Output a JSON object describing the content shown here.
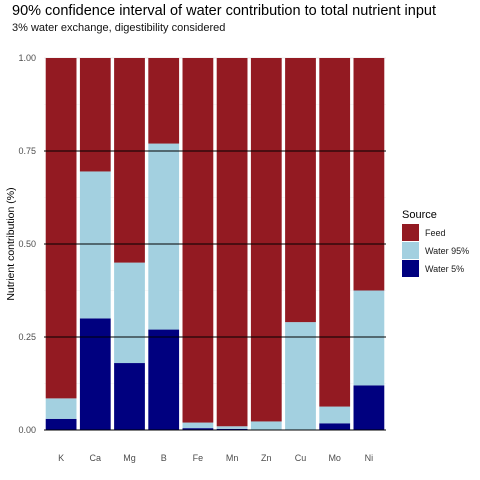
{
  "title": "90% confidence interval of water contribution to total nutrient input",
  "subtitle": "3% water exchange, digestibility considered",
  "chart_data": {
    "type": "bar",
    "stacked": true,
    "categories": [
      "K",
      "Ca",
      "Mg",
      "B",
      "Fe",
      "Mn",
      "Zn",
      "Cu",
      "Mo",
      "Ni"
    ],
    "series": [
      {
        "name": "Water 5%",
        "color": "#00007f",
        "values": [
          0.03,
          0.3,
          0.18,
          0.27,
          0.005,
          0.003,
          0.0,
          0.0,
          0.018,
          0.12
        ]
      },
      {
        "name": "Water 95%",
        "color": "#a3d0e0",
        "values": [
          0.055,
          0.395,
          0.27,
          0.5,
          0.015,
          0.007,
          0.023,
          0.29,
          0.045,
          0.255
        ]
      },
      {
        "name": "Feed",
        "color": "#931a22",
        "values": [
          0.915,
          0.305,
          0.55,
          0.23,
          0.98,
          0.99,
          0.977,
          0.71,
          0.937,
          0.625
        ]
      }
    ],
    "legend_order": [
      "Feed",
      "Water 95%",
      "Water 5%"
    ],
    "legend_title": "Source",
    "legend_position": "right",
    "ylabel": "Nutrient contribution (%)",
    "xlabel": "",
    "ylim": [
      0,
      1
    ],
    "yticks": [
      "0.00",
      "0.25",
      "0.50",
      "0.75",
      "1.00"
    ],
    "hlines": [
      0.25,
      0.5,
      0.75
    ],
    "grid": true
  }
}
